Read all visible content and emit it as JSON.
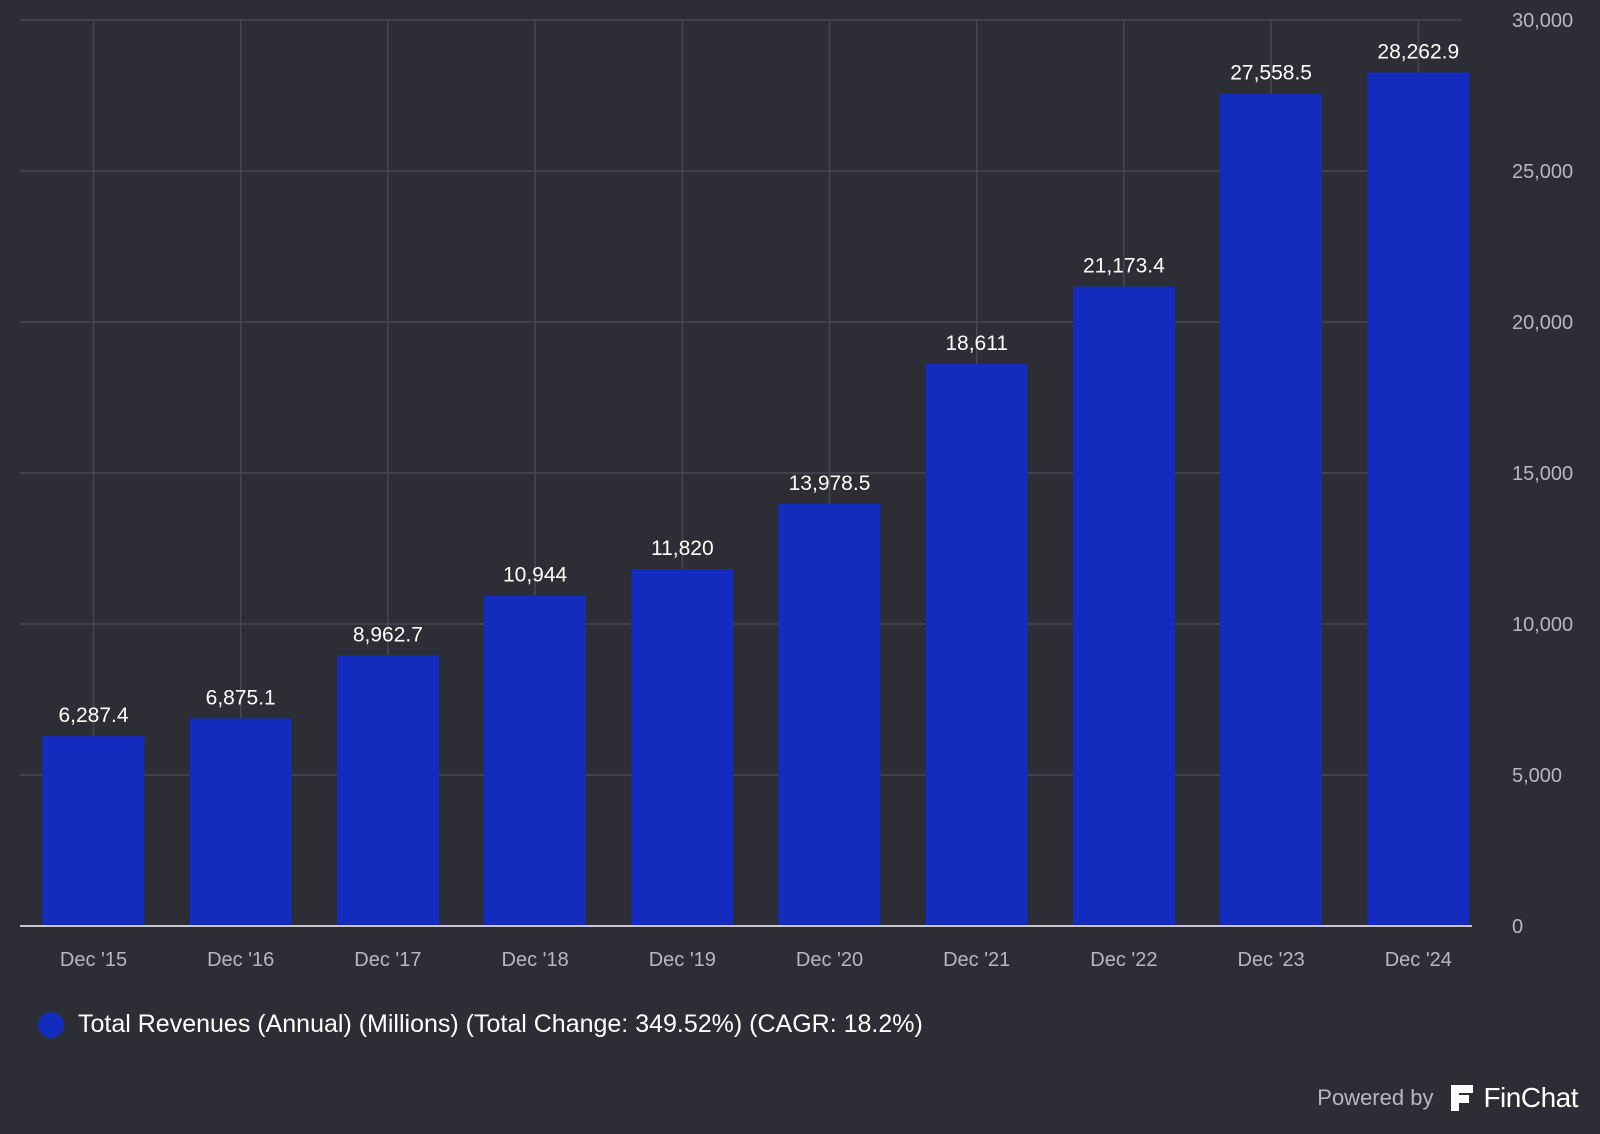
{
  "chart_data": {
    "type": "bar",
    "categories": [
      "Dec '15",
      "Dec '16",
      "Dec '17",
      "Dec '18",
      "Dec '19",
      "Dec '20",
      "Dec '21",
      "Dec '22",
      "Dec '23",
      "Dec '24"
    ],
    "values": [
      6287.4,
      6875.1,
      8962.7,
      10944,
      11820,
      13978.5,
      18611,
      21173.4,
      27558.5,
      28262.9
    ],
    "value_labels": [
      "6,287.4",
      "6,875.1",
      "8,962.7",
      "10,944",
      "11,820",
      "13,978.5",
      "18,611",
      "21,173.4",
      "27,558.5",
      "28,262.9"
    ],
    "yticks": [
      0,
      5000,
      10000,
      15000,
      20000,
      25000,
      30000
    ],
    "ytick_labels": [
      "0",
      "5,000",
      "10,000",
      "15,000",
      "20,000",
      "25,000",
      "30,000"
    ],
    "ylim": [
      0,
      30000
    ],
    "y_axis_side": "right",
    "grid": true,
    "legend_placement": "bottom-left",
    "series": [
      {
        "name": "Total Revenues (Annual) (Millions) (Total Change: 349.52%) (CAGR: 18.2%)",
        "color": "#142cbd"
      }
    ]
  },
  "colors": {
    "background": "#2c2d35",
    "bar": "#142cbd",
    "grid": "#474852",
    "axis_line": "#c8c8cc",
    "tick_label": "#b8b8bf",
    "value_label": "#ffffff"
  },
  "legend": {
    "label": "Total Revenues (Annual) (Millions) (Total Change: 349.52%) (CAGR: 18.2%)",
    "icon": "legend-circle-icon"
  },
  "footer": {
    "powered_by": "Powered by",
    "brand_name": "FinChat",
    "brand_icon": "finchat-logo-icon"
  }
}
